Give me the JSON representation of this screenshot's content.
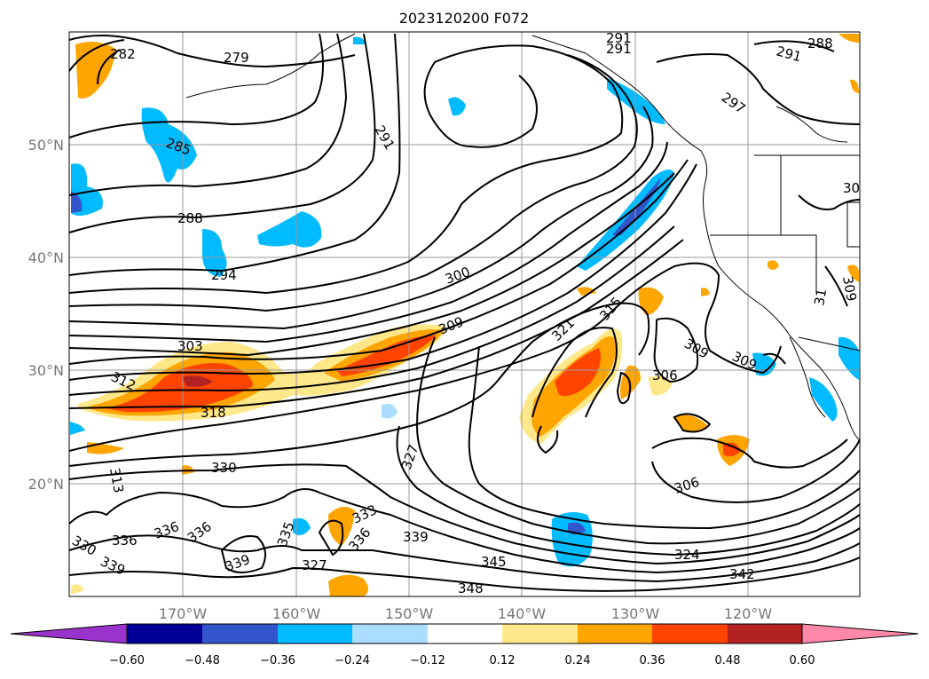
{
  "title": "2023120200 F072",
  "lon_labels": [
    "170°W",
    "160°W",
    "150°W",
    "140°W",
    "130°W",
    "120°W"
  ],
  "lat_labels": [
    "50°N",
    "40°N",
    "30°N",
    "20°N"
  ],
  "contour_labels": [
    "282",
    "279",
    "291",
    "291",
    "288",
    "291",
    "297",
    "285",
    "288",
    "294",
    "291",
    "300",
    "309",
    "303",
    "312",
    "318",
    "321",
    "315",
    "309",
    "309",
    "306",
    "30",
    "309",
    "31",
    "330",
    "313",
    "336",
    "336",
    "336",
    "333",
    "335",
    "339",
    "327",
    "336",
    "327",
    "339",
    "345",
    "348",
    "306",
    "324",
    "342",
    "330",
    "339"
  ],
  "colorbar": {
    "ticks": [
      "−0.60",
      "−0.48",
      "−0.36",
      "−0.24",
      "−0.12",
      "0.12",
      "0.24",
      "0.36",
      "0.48",
      "0.60"
    ],
    "colors": [
      "#9933cc",
      "#000099",
      "#3355cc",
      "#00bbff",
      "#aaddff",
      "#ffffff",
      "#ffe88a",
      "#ffa500",
      "#ff4400",
      "#b22222",
      "#ff88aa"
    ]
  },
  "fill_colors": {
    "neg_light": "#aaddff",
    "neg_mid": "#00bbff",
    "neg_dark": "#3355cc",
    "neg_deep": "#000099",
    "pos_light": "#ffe88a",
    "pos_mid": "#ffa500",
    "pos_strong": "#ff4400",
    "pos_deep": "#b22222"
  }
}
